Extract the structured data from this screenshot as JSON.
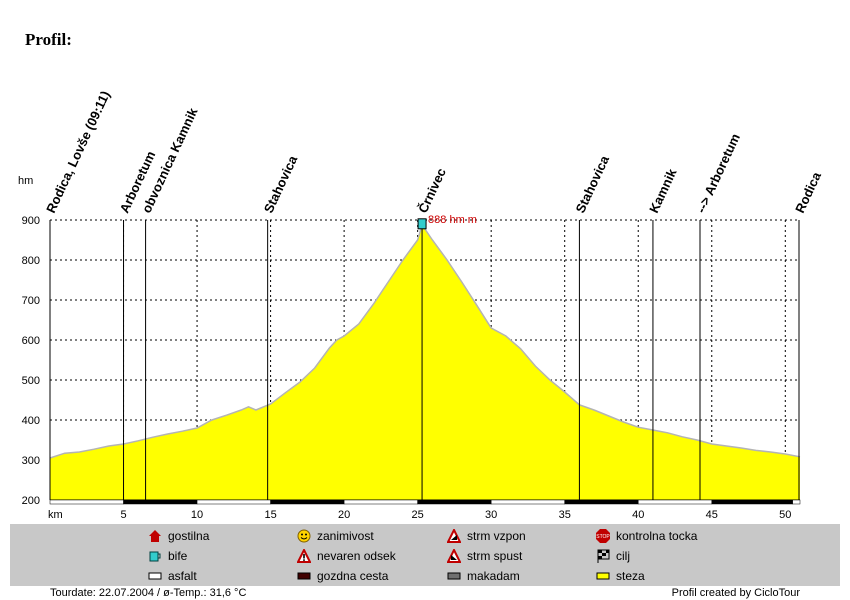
{
  "page": {
    "title": "Profil:"
  },
  "chart_data": {
    "type": "area",
    "ylabel": "hm",
    "xlabel": "km",
    "xlim": [
      0,
      51
    ],
    "ylim": [
      200,
      900
    ],
    "x_ticks": [
      5,
      10,
      15,
      20,
      25,
      30,
      35,
      40,
      45,
      50
    ],
    "y_ticks": [
      200,
      300,
      400,
      500,
      600,
      700,
      800,
      900
    ],
    "grid": true,
    "fill_color": "#ffff00",
    "line_color": "#b4b4b4",
    "series": [
      {
        "x": [
          0,
          1,
          2,
          3,
          4,
          5,
          6,
          7,
          8,
          9,
          10,
          11,
          12,
          13,
          13.5,
          14,
          15,
          16,
          17,
          18,
          19,
          19.5,
          20,
          21,
          22,
          23,
          24,
          25,
          25.3,
          26,
          27,
          28,
          29,
          30,
          31,
          32,
          33,
          34,
          35,
          36,
          37,
          38,
          39,
          40,
          41,
          42,
          43,
          44,
          45,
          46,
          47,
          48,
          49,
          50,
          51
        ],
        "y": [
          305,
          317,
          320,
          327,
          335,
          340,
          348,
          357,
          365,
          372,
          380,
          400,
          412,
          425,
          433,
          425,
          440,
          468,
          495,
          530,
          580,
          600,
          610,
          640,
          690,
          745,
          800,
          850,
          888,
          850,
          800,
          745,
          688,
          630,
          610,
          578,
          535,
          500,
          470,
          438,
          425,
          410,
          395,
          382,
          375,
          368,
          358,
          350,
          340,
          335,
          330,
          324,
          320,
          315,
          308
        ]
      }
    ],
    "waypoints": [
      {
        "km": 0,
        "label": "Rodica, Lovše (09:11)"
      },
      {
        "km": 5,
        "label": "Arboretum"
      },
      {
        "km": 6.5,
        "label": "obvoznica Kamnik"
      },
      {
        "km": 14.8,
        "label": "Stahovica"
      },
      {
        "km": 25.3,
        "label": "Črnivec"
      },
      {
        "km": 36,
        "label": "Stahovica"
      },
      {
        "km": 41,
        "label": "Kamnik"
      },
      {
        "km": 44.2,
        "label": "--> Arboretum"
      },
      {
        "km": 51,
        "label": "Rodica"
      }
    ],
    "peak": {
      "km": 25.3,
      "elevation": 888,
      "label": "888 hm m"
    },
    "surface_segments": [
      {
        "from": 0,
        "to": 5,
        "type": "asfalt"
      },
      {
        "from": 5,
        "to": 10,
        "type": "gozdna cesta"
      },
      {
        "from": 10,
        "to": 15,
        "type": "asfalt"
      },
      {
        "from": 15,
        "to": 20,
        "type": "gozdna cesta"
      },
      {
        "from": 20,
        "to": 25,
        "type": "asfalt"
      },
      {
        "from": 25,
        "to": 30,
        "type": "gozdna cesta"
      },
      {
        "from": 30,
        "to": 35,
        "type": "asfalt"
      },
      {
        "from": 35,
        "to": 40,
        "type": "gozdna cesta"
      },
      {
        "from": 40,
        "to": 45,
        "type": "asfalt"
      },
      {
        "from": 45,
        "to": 50.5,
        "type": "gozdna cesta"
      },
      {
        "from": 50.5,
        "to": 51,
        "type": "asfalt"
      }
    ]
  },
  "legend": [
    {
      "name": "gostilna-icon",
      "label": "gostilna"
    },
    {
      "name": "smiley-icon",
      "label": "zanimivost"
    },
    {
      "name": "steep-climb-icon",
      "label": "strm vzpon"
    },
    {
      "name": "stop-sign-icon",
      "label": "kontrolna tocka"
    },
    {
      "name": "cup-icon",
      "label": "bife"
    },
    {
      "name": "warning-icon",
      "label": "nevaren odsek"
    },
    {
      "name": "steep-descent-icon",
      "label": "strm spust"
    },
    {
      "name": "finish-flag-icon",
      "label": "cilj"
    },
    {
      "name": "asphalt-swatch-icon",
      "label": "asfalt"
    },
    {
      "name": "forest-road-swatch-icon",
      "label": "gozdna cesta"
    },
    {
      "name": "macadam-swatch-icon",
      "label": "makadam"
    },
    {
      "name": "trail-swatch-icon",
      "label": "steza"
    }
  ],
  "colors": {
    "surface_asfalt": "#ffffff",
    "surface_gozdna_cesta": "#000000",
    "peak_marker": "#33cccc",
    "peak_label": "#cc0000",
    "legend_bg": "#c8c8c8"
  },
  "footer": {
    "tourdate": "Tourdate: 22.07.2004  /  ø-Temp.: 31,6 °C",
    "credit": "Profil created by CicloTour"
  }
}
